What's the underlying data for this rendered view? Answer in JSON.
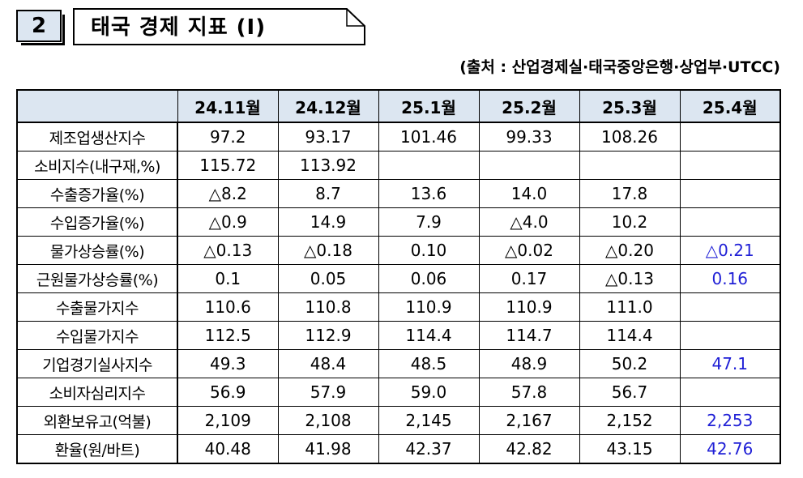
{
  "header": {
    "number": "2",
    "title": "태국 경제 지표 (Ⅰ)",
    "source": "(출처 : 산업경제실·태국중앙은행·상업부·UTCC)"
  },
  "table": {
    "columns": [
      "",
      "24.11월",
      "24.12월",
      "25.1월",
      "25.2월",
      "25.3월",
      "25.4월"
    ],
    "rows": [
      {
        "label": "제조업생산지수",
        "values": [
          "97.2",
          "93.17",
          "101.46",
          "99.33",
          "108.26",
          ""
        ]
      },
      {
        "label": "소비지수(내구재,%)",
        "values": [
          "115.72",
          "113.92",
          "",
          "",
          "",
          ""
        ]
      },
      {
        "label": "수출증가율(%)",
        "values": [
          "△8.2",
          "8.7",
          "13.6",
          "14.0",
          "17.8",
          ""
        ]
      },
      {
        "label": "수입증가율(%)",
        "values": [
          "△0.9",
          "14.9",
          "7.9",
          "△4.0",
          "10.2",
          ""
        ]
      },
      {
        "label": "물가상승률(%)",
        "values": [
          "△0.13",
          "△0.18",
          "0.10",
          "△0.02",
          "△0.20",
          "△0.21"
        ]
      },
      {
        "label": "근원물가상승률(%)",
        "values": [
          "0.1",
          "0.05",
          "0.06",
          "0.17",
          "△0.13",
          "0.16"
        ]
      },
      {
        "label": "수출물가지수",
        "values": [
          "110.6",
          "110.8",
          "110.9",
          "110.9",
          "111.0",
          ""
        ]
      },
      {
        "label": "수입물가지수",
        "values": [
          "112.5",
          "112.9",
          "114.4",
          "114.7",
          "114.4",
          ""
        ]
      },
      {
        "label": "기업경기실사지수",
        "values": [
          "49.3",
          "48.4",
          "48.5",
          "48.9",
          "50.2",
          "47.1"
        ]
      },
      {
        "label": "소비자심리지수",
        "values": [
          "56.9",
          "57.9",
          "59.0",
          "57.8",
          "56.7",
          ""
        ]
      },
      {
        "label": "외환보유고(억불)",
        "values": [
          "2,109",
          "2,108",
          "2,145",
          "2,167",
          "2,152",
          "2,253"
        ]
      },
      {
        "label": "환율(원/바트)",
        "values": [
          "40.48",
          "41.98",
          "42.37",
          "42.82",
          "43.15",
          "42.76"
        ]
      }
    ]
  },
  "colors": {
    "header_bg": "#dce6f1",
    "highlight_text": "#1f1fd6"
  }
}
